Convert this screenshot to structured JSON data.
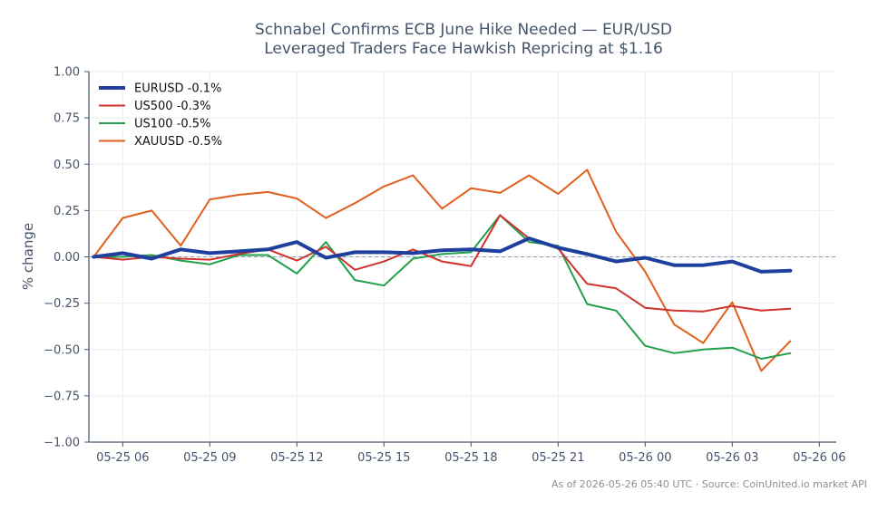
{
  "chart_data": {
    "type": "line",
    "title": [
      "Schnabel Confirms ECB June Hike Needed — EUR/USD",
      "Leveraged Traders Face Hawkish Repricing at $1.16"
    ],
    "ylabel": "% change",
    "xlabel": "",
    "ylim": [
      -1.0,
      1.0
    ],
    "yticks": [
      1.0,
      0.75,
      0.5,
      0.25,
      0.0,
      -0.25,
      -0.5,
      -0.75,
      -1.0
    ],
    "ytick_labels": [
      "1.00",
      "0.75",
      "0.50",
      "0.25",
      "0.00",
      "−0.25",
      "−0.50",
      "−0.75",
      "−1.00"
    ],
    "xlim": [
      "2026-05-25 04:50",
      "2026-05-26 06:35"
    ],
    "xticks": [
      "2026-05-25 06:00",
      "2026-05-25 09:00",
      "2026-05-25 12:00",
      "2026-05-25 15:00",
      "2026-05-25 18:00",
      "2026-05-25 21:00",
      "2026-05-26 00:00",
      "2026-05-26 03:00",
      "2026-05-26 06:00"
    ],
    "xtick_labels": [
      "05-25 06",
      "05-25 09",
      "05-25 12",
      "05-25 15",
      "05-25 18",
      "05-25 21",
      "05-26 00",
      "05-26 03",
      "05-26 06"
    ],
    "x": [
      "2026-05-25 05:00",
      "2026-05-25 06:00",
      "2026-05-25 07:00",
      "2026-05-25 08:00",
      "2026-05-25 09:00",
      "2026-05-25 10:00",
      "2026-05-25 11:00",
      "2026-05-25 12:00",
      "2026-05-25 13:00",
      "2026-05-25 14:00",
      "2026-05-25 15:00",
      "2026-05-25 16:00",
      "2026-05-25 17:00",
      "2026-05-25 18:00",
      "2026-05-25 19:00",
      "2026-05-25 20:00",
      "2026-05-25 21:00",
      "2026-05-25 22:00",
      "2026-05-25 23:00",
      "2026-05-26 00:00",
      "2026-05-26 01:00",
      "2026-05-26 02:00",
      "2026-05-26 03:00",
      "2026-05-26 04:00",
      "2026-05-26 05:00"
    ],
    "series": [
      {
        "name": "EURUSD -0.1%",
        "color": "#1f3f9e",
        "width": 4,
        "values": [
          0.0,
          0.02,
          -0.01,
          0.04,
          0.02,
          0.03,
          0.04,
          0.08,
          -0.005,
          0.025,
          0.025,
          0.02,
          0.035,
          0.04,
          0.03,
          0.1,
          0.05,
          0.015,
          -0.025,
          -0.005,
          -0.045,
          -0.045,
          -0.025,
          -0.08,
          -0.075
        ]
      },
      {
        "name": "US500 -0.3%",
        "color": "#d0312d",
        "width": 2,
        "values": [
          0.0,
          -0.015,
          0.0,
          -0.01,
          -0.015,
          0.015,
          0.04,
          -0.02,
          0.055,
          -0.07,
          -0.025,
          0.04,
          -0.025,
          -0.05,
          0.225,
          0.1,
          0.045,
          -0.145,
          -0.17,
          -0.275,
          -0.29,
          -0.295,
          -0.265,
          -0.29,
          -0.28
        ]
      },
      {
        "name": "US100 -0.5%",
        "color": "#22a04b",
        "width": 2,
        "values": [
          0.0,
          0.0,
          0.01,
          -0.02,
          -0.04,
          0.01,
          0.01,
          -0.09,
          0.08,
          -0.125,
          -0.155,
          -0.01,
          0.015,
          0.025,
          0.225,
          0.08,
          0.06,
          -0.255,
          -0.29,
          -0.48,
          -0.52,
          -0.5,
          -0.49,
          -0.55,
          -0.52
        ]
      },
      {
        "name": "XAUUSD -0.5%",
        "color": "#e0601c",
        "width": 2,
        "values": [
          0.0,
          0.21,
          0.25,
          0.06,
          0.31,
          0.335,
          0.35,
          0.315,
          0.21,
          0.29,
          0.38,
          0.44,
          0.26,
          0.37,
          0.345,
          0.44,
          0.34,
          0.47,
          0.135,
          -0.08,
          -0.365,
          -0.465,
          -0.245,
          -0.615,
          -0.455
        ]
      }
    ],
    "baseline": 0.0,
    "grid": true,
    "legend_position": "top-left"
  },
  "footer": "As of 2026-05-26 05:40 UTC · Source: CoinUnited.io market API"
}
